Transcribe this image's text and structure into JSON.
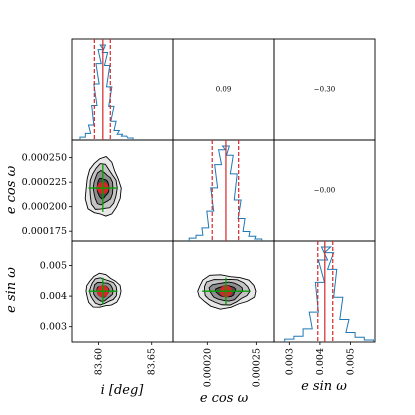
{
  "chart_data": {
    "type": "corner",
    "parameters": [
      {
        "key": "i",
        "label": "i [deg]",
        "range": [
          83.575,
          83.67
        ],
        "ticks": [
          83.6,
          83.65
        ],
        "tick_labels": [
          "83.60",
          "83.65"
        ],
        "median": 83.604,
        "lower": 83.596,
        "upper": 83.611
      },
      {
        "key": "ecosw",
        "label": "e cos ω",
        "range": [
          0.000165,
          0.000268
        ],
        "ticks": [
          0.000175,
          0.0002,
          0.000225,
          0.00025
        ],
        "tick_labels": [
          "0.000175",
          "0.000200",
          "0.000225",
          "0.000250"
        ],
        "x_tick_labels": [
          "0.00020",
          "0.00025"
        ],
        "median": 0.000219,
        "lower": 0.000205,
        "upper": 0.000232
      },
      {
        "key": "esinw",
        "label": "e sin ω",
        "range": [
          0.0025,
          0.0058
        ],
        "ticks": [
          0.003,
          0.004,
          0.005
        ],
        "tick_labels": [
          "0.003",
          "0.004",
          "0.005"
        ],
        "median": 0.00416,
        "lower": 0.00393,
        "upper": 0.00442
      }
    ],
    "correlations": [
      {
        "row": 0,
        "col": 1,
        "text": "0.09"
      },
      {
        "row": 0,
        "col": 2,
        "text": "−0.30"
      },
      {
        "row": 1,
        "col": 2,
        "text": "−0.00"
      }
    ],
    "histograms": [
      {
        "x": [
          83.585,
          83.59,
          83.593,
          83.596,
          83.598,
          83.6,
          83.602,
          83.604,
          83.606,
          83.608,
          83.61,
          83.612,
          83.614,
          83.617,
          83.62,
          83.624,
          83.63
        ],
        "y": [
          0.01,
          0.05,
          0.14,
          0.35,
          0.58,
          0.8,
          0.95,
          1.0,
          0.92,
          0.78,
          0.55,
          0.34,
          0.18,
          0.08,
          0.04,
          0.02,
          0.0
        ]
      },
      {
        "x": [
          0.000185,
          0.000192,
          0.000198,
          0.000203,
          0.000207,
          0.000211,
          0.000215,
          0.000219,
          0.000223,
          0.000227,
          0.000231,
          0.000235,
          0.00024,
          0.000246,
          0.000252
        ],
        "y": [
          0.01,
          0.04,
          0.12,
          0.3,
          0.55,
          0.8,
          0.96,
          1.0,
          0.9,
          0.7,
          0.42,
          0.22,
          0.08,
          0.03,
          0.0
        ]
      },
      {
        "x": [
          0.003,
          0.0033,
          0.0036,
          0.0038,
          0.004,
          0.0041,
          0.0042,
          0.0043,
          0.0044,
          0.0046,
          0.0048,
          0.005,
          0.0053,
          0.0056
        ],
        "y": [
          0.01,
          0.04,
          0.12,
          0.3,
          0.62,
          0.86,
          1.0,
          0.94,
          0.76,
          0.46,
          0.22,
          0.08,
          0.03,
          0.0
        ]
      }
    ],
    "colors": {
      "histogram": "#1f77b4",
      "median": "#d62728",
      "quantile": "#d62728",
      "truth_lines": "#00a000",
      "contour_fill": [
        "#e8e8e8",
        "#c4c4c4",
        "#8e8e8e",
        "#4c4c4c"
      ],
      "contour_line": "#000000",
      "peak": "#d62728"
    },
    "contour_levels": [
      1.0,
      0.78,
      0.56,
      0.34
    ],
    "grid": false,
    "legend": "none"
  }
}
